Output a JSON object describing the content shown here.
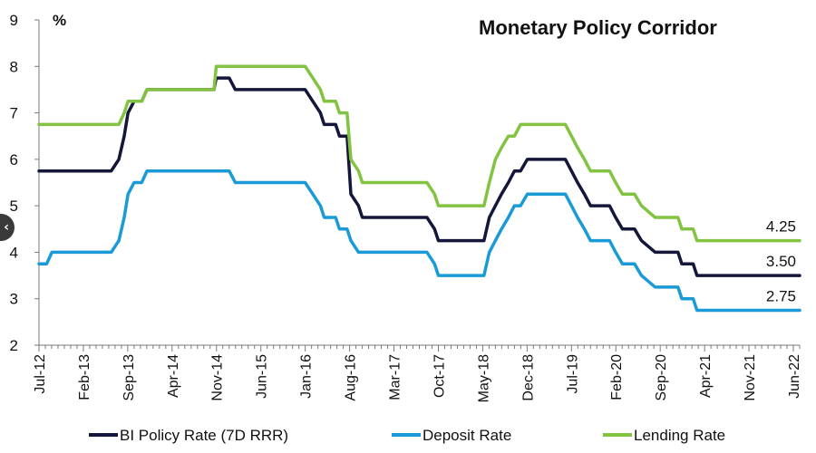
{
  "nav": {
    "prev_label": "‹",
    "prev_icon": "chevron-left-icon"
  },
  "chart_data": {
    "type": "line",
    "title": "Monetary Policy Corridor",
    "ylabel": "%",
    "ylim": [
      2,
      9
    ],
    "yticks": [
      "2",
      "3",
      "4",
      "5",
      "6",
      "7",
      "8",
      "9"
    ],
    "xlim": [
      2012.5,
      2022.5
    ],
    "xticks": [
      {
        "x": 2012.5,
        "label": "Jul-12"
      },
      {
        "x": 2013.083,
        "label": "Feb-13"
      },
      {
        "x": 2013.667,
        "label": "Sep-13"
      },
      {
        "x": 2014.25,
        "label": "Apr-14"
      },
      {
        "x": 2014.833,
        "label": "Nov-14"
      },
      {
        "x": 2015.417,
        "label": "Jun-15"
      },
      {
        "x": 2016.0,
        "label": "Jan-16"
      },
      {
        "x": 2016.583,
        "label": "Aug-16"
      },
      {
        "x": 2017.167,
        "label": "Mar-17"
      },
      {
        "x": 2017.75,
        "label": "Oct-17"
      },
      {
        "x": 2018.333,
        "label": "May-18"
      },
      {
        "x": 2018.917,
        "label": "Dec-18"
      },
      {
        "x": 2019.5,
        "label": "Jul-19"
      },
      {
        "x": 2020.083,
        "label": "Feb-20"
      },
      {
        "x": 2020.667,
        "label": "Sep-20"
      },
      {
        "x": 2021.25,
        "label": "Apr-21"
      },
      {
        "x": 2021.833,
        "label": "Nov-21"
      },
      {
        "x": 2022.417,
        "label": "Jun-22"
      }
    ],
    "grid": false,
    "legend_position": "bottom",
    "series": [
      {
        "name": "BI Policy Rate (7D RRR)",
        "color": "#14163a",
        "end_label": "3.50",
        "points": [
          [
            2012.5,
            5.75
          ],
          [
            2013.45,
            5.75
          ],
          [
            2013.55,
            6.0
          ],
          [
            2013.62,
            6.5
          ],
          [
            2013.67,
            7.0
          ],
          [
            2013.75,
            7.25
          ],
          [
            2013.85,
            7.25
          ],
          [
            2013.92,
            7.5
          ],
          [
            2014.8,
            7.5
          ],
          [
            2014.83,
            7.75
          ],
          [
            2015.0,
            7.75
          ],
          [
            2015.08,
            7.5
          ],
          [
            2016.0,
            7.5
          ],
          [
            2016.1,
            7.25
          ],
          [
            2016.2,
            7.0
          ],
          [
            2016.25,
            6.75
          ],
          [
            2016.4,
            6.75
          ],
          [
            2016.45,
            6.5
          ],
          [
            2016.55,
            6.5
          ],
          [
            2016.6,
            5.25
          ],
          [
            2016.7,
            5.0
          ],
          [
            2016.75,
            4.75
          ],
          [
            2017.6,
            4.75
          ],
          [
            2017.7,
            4.5
          ],
          [
            2017.75,
            4.25
          ],
          [
            2018.35,
            4.25
          ],
          [
            2018.42,
            4.75
          ],
          [
            2018.5,
            5.0
          ],
          [
            2018.58,
            5.25
          ],
          [
            2018.67,
            5.5
          ],
          [
            2018.75,
            5.75
          ],
          [
            2018.83,
            5.75
          ],
          [
            2018.92,
            6.0
          ],
          [
            2019.42,
            6.0
          ],
          [
            2019.5,
            5.75
          ],
          [
            2019.58,
            5.5
          ],
          [
            2019.67,
            5.25
          ],
          [
            2019.75,
            5.0
          ],
          [
            2020.0,
            5.0
          ],
          [
            2020.08,
            4.75
          ],
          [
            2020.17,
            4.5
          ],
          [
            2020.33,
            4.5
          ],
          [
            2020.42,
            4.25
          ],
          [
            2020.6,
            4.0
          ],
          [
            2020.9,
            4.0
          ],
          [
            2020.95,
            3.75
          ],
          [
            2021.1,
            3.75
          ],
          [
            2021.15,
            3.5
          ],
          [
            2022.5,
            3.5
          ]
        ]
      },
      {
        "name": "Deposit Rate",
        "color": "#1a9ad6",
        "end_label": "2.75",
        "points": [
          [
            2012.5,
            3.75
          ],
          [
            2012.6,
            3.75
          ],
          [
            2012.67,
            4.0
          ],
          [
            2013.45,
            4.0
          ],
          [
            2013.55,
            4.25
          ],
          [
            2013.62,
            4.75
          ],
          [
            2013.67,
            5.25
          ],
          [
            2013.75,
            5.5
          ],
          [
            2013.85,
            5.5
          ],
          [
            2013.92,
            5.75
          ],
          [
            2014.8,
            5.75
          ],
          [
            2015.0,
            5.75
          ],
          [
            2015.08,
            5.5
          ],
          [
            2016.0,
            5.5
          ],
          [
            2016.1,
            5.25
          ],
          [
            2016.2,
            5.0
          ],
          [
            2016.25,
            4.75
          ],
          [
            2016.4,
            4.75
          ],
          [
            2016.45,
            4.5
          ],
          [
            2016.55,
            4.5
          ],
          [
            2016.6,
            4.25
          ],
          [
            2016.7,
            4.0
          ],
          [
            2017.6,
            4.0
          ],
          [
            2017.7,
            3.75
          ],
          [
            2017.75,
            3.5
          ],
          [
            2018.35,
            3.5
          ],
          [
            2018.42,
            4.0
          ],
          [
            2018.5,
            4.25
          ],
          [
            2018.58,
            4.5
          ],
          [
            2018.67,
            4.75
          ],
          [
            2018.75,
            5.0
          ],
          [
            2018.83,
            5.0
          ],
          [
            2018.92,
            5.25
          ],
          [
            2019.42,
            5.25
          ],
          [
            2019.5,
            5.0
          ],
          [
            2019.58,
            4.75
          ],
          [
            2019.67,
            4.5
          ],
          [
            2019.75,
            4.25
          ],
          [
            2020.0,
            4.25
          ],
          [
            2020.08,
            4.0
          ],
          [
            2020.17,
            3.75
          ],
          [
            2020.33,
            3.75
          ],
          [
            2020.42,
            3.5
          ],
          [
            2020.6,
            3.25
          ],
          [
            2020.9,
            3.25
          ],
          [
            2020.95,
            3.0
          ],
          [
            2021.1,
            3.0
          ],
          [
            2021.15,
            2.75
          ],
          [
            2022.5,
            2.75
          ]
        ]
      },
      {
        "name": "Lending Rate",
        "color": "#82c341",
        "end_label": "4.25",
        "points": [
          [
            2012.5,
            6.75
          ],
          [
            2013.45,
            6.75
          ],
          [
            2013.55,
            6.75
          ],
          [
            2013.62,
            7.0
          ],
          [
            2013.67,
            7.25
          ],
          [
            2013.75,
            7.25
          ],
          [
            2013.85,
            7.25
          ],
          [
            2013.92,
            7.5
          ],
          [
            2014.8,
            7.5
          ],
          [
            2014.83,
            8.0
          ],
          [
            2016.0,
            8.0
          ],
          [
            2016.1,
            7.75
          ],
          [
            2016.2,
            7.5
          ],
          [
            2016.25,
            7.25
          ],
          [
            2016.4,
            7.25
          ],
          [
            2016.45,
            7.0
          ],
          [
            2016.55,
            7.0
          ],
          [
            2016.6,
            6.0
          ],
          [
            2016.7,
            5.75
          ],
          [
            2016.75,
            5.5
          ],
          [
            2017.6,
            5.5
          ],
          [
            2017.7,
            5.25
          ],
          [
            2017.75,
            5.0
          ],
          [
            2018.35,
            5.0
          ],
          [
            2018.42,
            5.5
          ],
          [
            2018.5,
            6.0
          ],
          [
            2018.58,
            6.25
          ],
          [
            2018.67,
            6.5
          ],
          [
            2018.75,
            6.5
          ],
          [
            2018.83,
            6.75
          ],
          [
            2019.42,
            6.75
          ],
          [
            2019.5,
            6.5
          ],
          [
            2019.58,
            6.25
          ],
          [
            2019.67,
            6.0
          ],
          [
            2019.75,
            5.75
          ],
          [
            2020.0,
            5.75
          ],
          [
            2020.08,
            5.5
          ],
          [
            2020.17,
            5.25
          ],
          [
            2020.33,
            5.25
          ],
          [
            2020.42,
            5.0
          ],
          [
            2020.6,
            4.75
          ],
          [
            2020.9,
            4.75
          ],
          [
            2020.95,
            4.5
          ],
          [
            2021.1,
            4.5
          ],
          [
            2021.15,
            4.25
          ],
          [
            2022.5,
            4.25
          ]
        ]
      }
    ]
  }
}
